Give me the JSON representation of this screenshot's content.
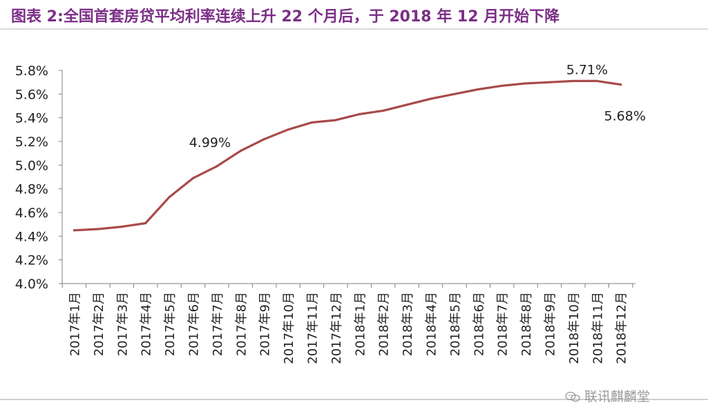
{
  "title": "图表 2:全国首套房贷平均利率连续上升 22 个月后，于 2018 年 12 月开始下降",
  "watermark": "联讯麒麟堂",
  "colors": {
    "title": "#7b2f86",
    "line": "#a84a4a",
    "axis": "#7f7f7f",
    "text": "#222222"
  },
  "chart_data": {
    "type": "line",
    "categories": [
      "2017年1月",
      "2017年2月",
      "2017年3月",
      "2017年4月",
      "2017年5月",
      "2017年6月",
      "2017年7月",
      "2017年8月",
      "2017年9月",
      "2017年10月",
      "2017年11月",
      "2017年12月",
      "2018年1月",
      "2018年2月",
      "2018年3月",
      "2018年4月",
      "2018年5月",
      "2018年6月",
      "2018年7月",
      "2018年8月",
      "2018年9月",
      "2018年10月",
      "2018年11月",
      "2018年12月"
    ],
    "series": [
      {
        "values": [
          4.45,
          4.46,
          4.48,
          4.51,
          4.73,
          4.89,
          4.99,
          5.12,
          5.22,
          5.3,
          5.36,
          5.38,
          5.43,
          5.46,
          5.51,
          5.56,
          5.6,
          5.64,
          5.67,
          5.69,
          5.7,
          5.71,
          5.71,
          5.68
        ]
      }
    ],
    "ylim": [
      4.0,
      5.8
    ],
    "yticks": [
      "4.0%",
      "4.2%",
      "4.4%",
      "4.6%",
      "4.8%",
      "5.0%",
      "5.2%",
      "5.4%",
      "5.6%",
      "5.8%"
    ],
    "annotations": [
      {
        "index": 6,
        "text": "4.99%"
      },
      {
        "index": 21,
        "text": "5.71%"
      },
      {
        "index": 23,
        "text": "5.68%"
      }
    ],
    "xlabel": "",
    "ylabel": "",
    "grid": false,
    "legend": "none"
  }
}
